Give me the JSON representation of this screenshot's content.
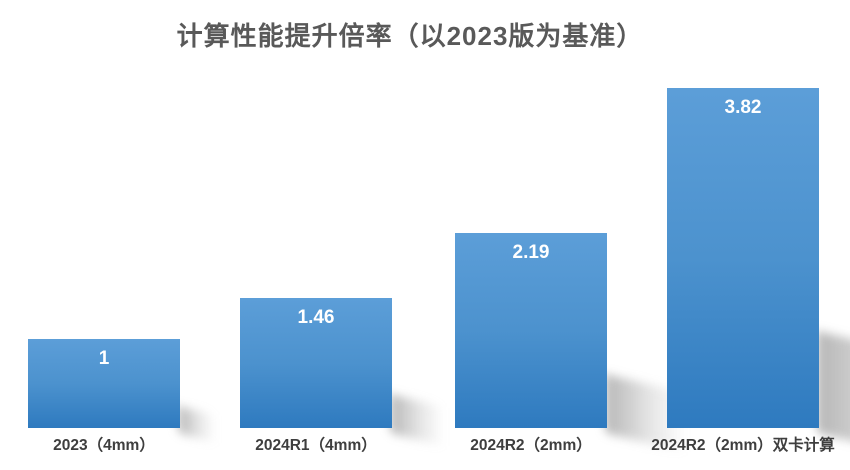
{
  "chart_data": {
    "type": "bar",
    "title": "计算性能提升倍率（以2023版为基准）",
    "categories": [
      "2023（4mm）",
      "2024R1（4mm）",
      "2024R2（2mm）",
      "2024R2（2mm）双卡计算"
    ],
    "values": [
      1,
      1.46,
      2.19,
      3.82
    ],
    "xlabel": "",
    "ylabel": "",
    "ylim": [
      0,
      4
    ],
    "grid": false,
    "legend": false,
    "axes_visible": false,
    "colors": {
      "bar_gradient_top": "#5C9ED8",
      "bar_gradient_bottom": "#2E7ABF",
      "value_label": "#FFFFFF",
      "title_text": "#595959",
      "category_text": "#3E3E3E",
      "background": "#FFFFFF"
    }
  }
}
